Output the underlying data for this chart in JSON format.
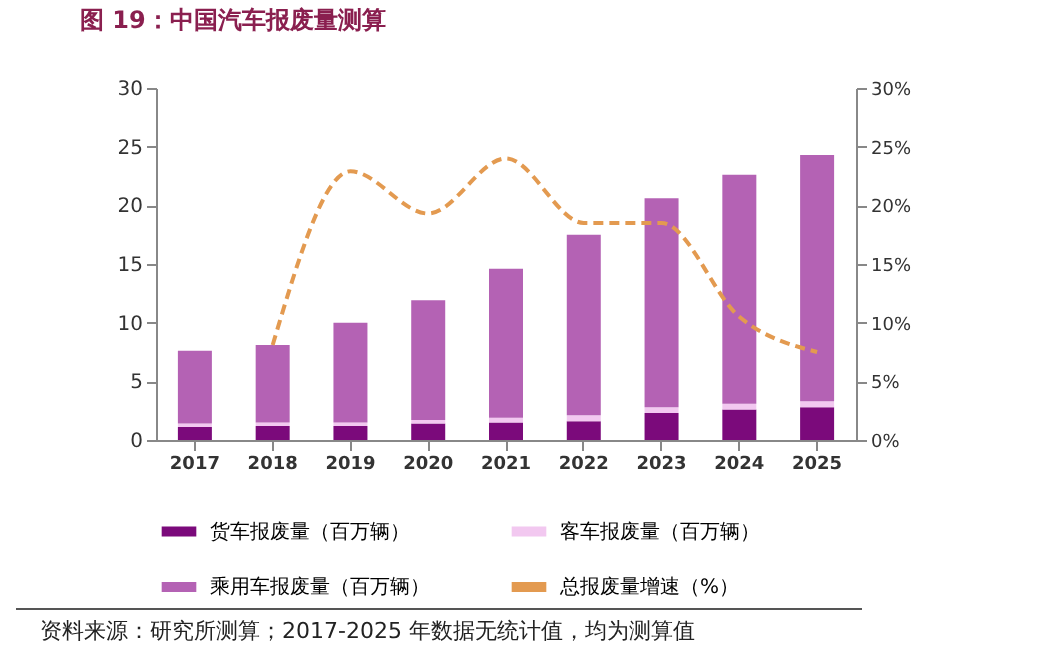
{
  "chart_data": {
    "type": "bar",
    "title": "图 19：中国汽车报废量测算",
    "stacked": true,
    "legend": "bottom",
    "categories": [
      "2017",
      "2018",
      "2019",
      "2020",
      "2021",
      "2022",
      "2023",
      "2024",
      "2025"
    ],
    "series": [
      {
        "name": "货车报废量（百万辆）",
        "color": "#7b0a7b",
        "values": [
          1.1,
          1.2,
          1.2,
          1.4,
          1.5,
          1.6,
          2.3,
          2.6,
          2.8
        ]
      },
      {
        "name": "客车报废量（百万辆）",
        "color": "#f2c8f0",
        "values": [
          0.3,
          0.3,
          0.3,
          0.3,
          0.4,
          0.5,
          0.5,
          0.5,
          0.5
        ]
      },
      {
        "name": "乘用车报废量（百万辆）",
        "color": "#b462b4",
        "values": [
          6.2,
          6.6,
          8.5,
          10.2,
          12.7,
          15.4,
          17.8,
          19.5,
          21.0
        ]
      },
      {
        "name": "总报废量增速（%）",
        "type": "line",
        "axis": "y2",
        "line_style": "dashed",
        "color": "#e39a50",
        "values": [
          null,
          8.1,
          22.9,
          19.3,
          24,
          18.5,
          18.5,
          10.5,
          7.5
        ]
      }
    ],
    "ylim": [
      0,
      30
    ],
    "yticks": [
      0,
      5,
      10,
      15,
      20,
      25,
      30
    ],
    "y2lim": [
      0,
      30
    ],
    "y2ticks": [
      {
        "value": 0,
        "label": "0%"
      },
      {
        "value": 5,
        "label": "5%"
      },
      {
        "value": 10,
        "label": "10%"
      },
      {
        "value": 15,
        "label": "15%"
      },
      {
        "value": 20,
        "label": "20%"
      },
      {
        "value": 25,
        "label": "25%"
      },
      {
        "value": 30,
        "label": "30%"
      }
    ],
    "annotations": [
      "资料来源：研究所测算；2017-2025 年数据无统计值，均为测算值"
    ]
  }
}
